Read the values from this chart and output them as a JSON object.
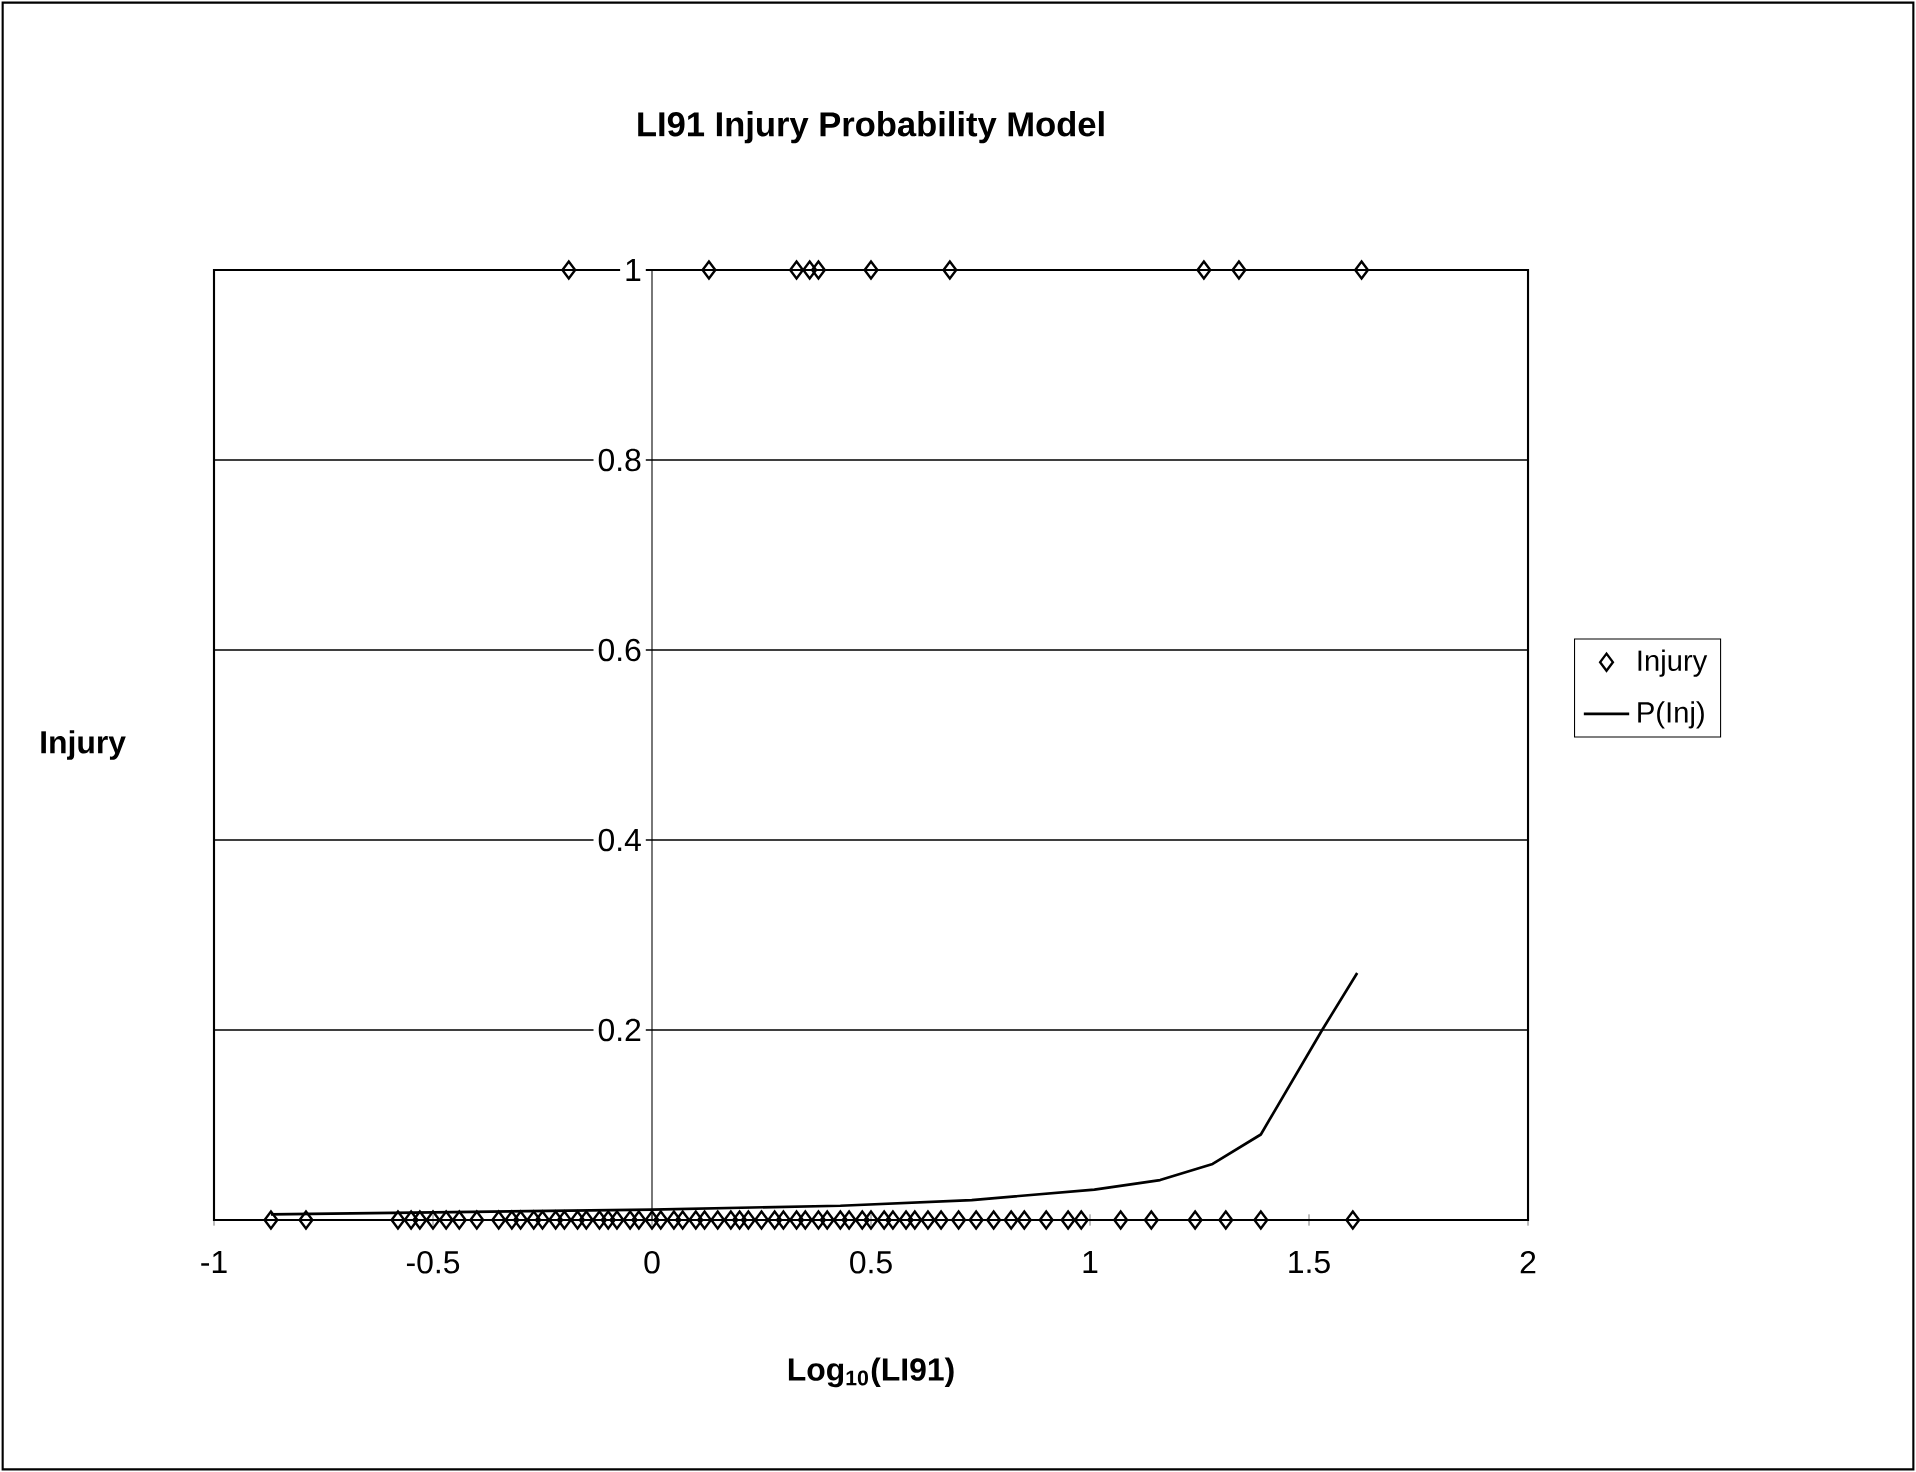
{
  "chart_data": {
    "type": "scatter",
    "title": "LI91 Injury Probability Model",
    "xlabel": "**Log$_{10}$(LI91)**",
    "ylabel": "Injury",
    "xlim": [
      -1,
      2
    ],
    "ylim": [
      0,
      1
    ],
    "xticks": [
      -1,
      -0.5,
      0,
      0.5,
      1,
      1.5,
      2
    ],
    "yticks": [
      {
        "value": 0,
        "label": null
      },
      0.2,
      0.4,
      0.6,
      0.8,
      1
    ],
    "grid": "y",
    "legend": "right",
    "series": [
      {
        "name": "Injury",
        "marker": "diamond",
        "color": "#000000",
        "x": [
          -0.19,
          0.13,
          0.33,
          0.36,
          0.38,
          0.5,
          0.68,
          1.26,
          1.34,
          1.62,
          -0.87,
          -0.79,
          -0.58,
          -0.55,
          -0.53,
          -0.5,
          -0.47,
          -0.44,
          -0.4,
          -0.35,
          -0.32,
          -0.3,
          -0.27,
          -0.25,
          -0.22,
          -0.2,
          -0.17,
          -0.15,
          -0.12,
          -0.1,
          -0.08,
          -0.05,
          -0.03,
          0,
          0.02,
          0.05,
          0.07,
          0.1,
          0.12,
          0.15,
          0.18,
          0.2,
          0.22,
          0.25,
          0.28,
          0.3,
          0.33,
          0.35,
          0.38,
          0.4,
          0.43,
          0.45,
          0.48,
          0.5,
          0.53,
          0.55,
          0.58,
          0.6,
          0.63,
          0.66,
          0.7,
          0.74,
          0.78,
          0.82,
          0.85,
          0.9,
          0.95,
          0.98,
          1.07,
          1.14,
          1.24,
          1.31,
          1.39,
          1.6
        ],
        "values": [
          1,
          1,
          1,
          1,
          1,
          1,
          1,
          1,
          1,
          1,
          0,
          0,
          0,
          0,
          0,
          0,
          0,
          0,
          0,
          0,
          0,
          0,
          0,
          0,
          0,
          0,
          0,
          0,
          0,
          0,
          0,
          0,
          0,
          0,
          0,
          0,
          0,
          0,
          0,
          0,
          0,
          0,
          0,
          0,
          0,
          0,
          0,
          0,
          0,
          0,
          0,
          0,
          0,
          0,
          0,
          0,
          0,
          0,
          0,
          0,
          0,
          0,
          0,
          0,
          0,
          0,
          0,
          0,
          0,
          0,
          0,
          0,
          0,
          0
        ]
      },
      {
        "name": "P(Inj)",
        "type": "line",
        "marker": "none",
        "line_style": "solid",
        "color": "#000000",
        "x": [
          -0.87,
          -0.5,
          0,
          0.43,
          0.73,
          1.01,
          1.16,
          1.28,
          1.39,
          1.53,
          1.61
        ],
        "values": [
          0.006,
          0.008,
          0.011,
          0.015,
          0.021,
          0.032,
          0.042,
          0.059,
          0.09,
          0.2,
          0.26
        ]
      }
    ]
  }
}
